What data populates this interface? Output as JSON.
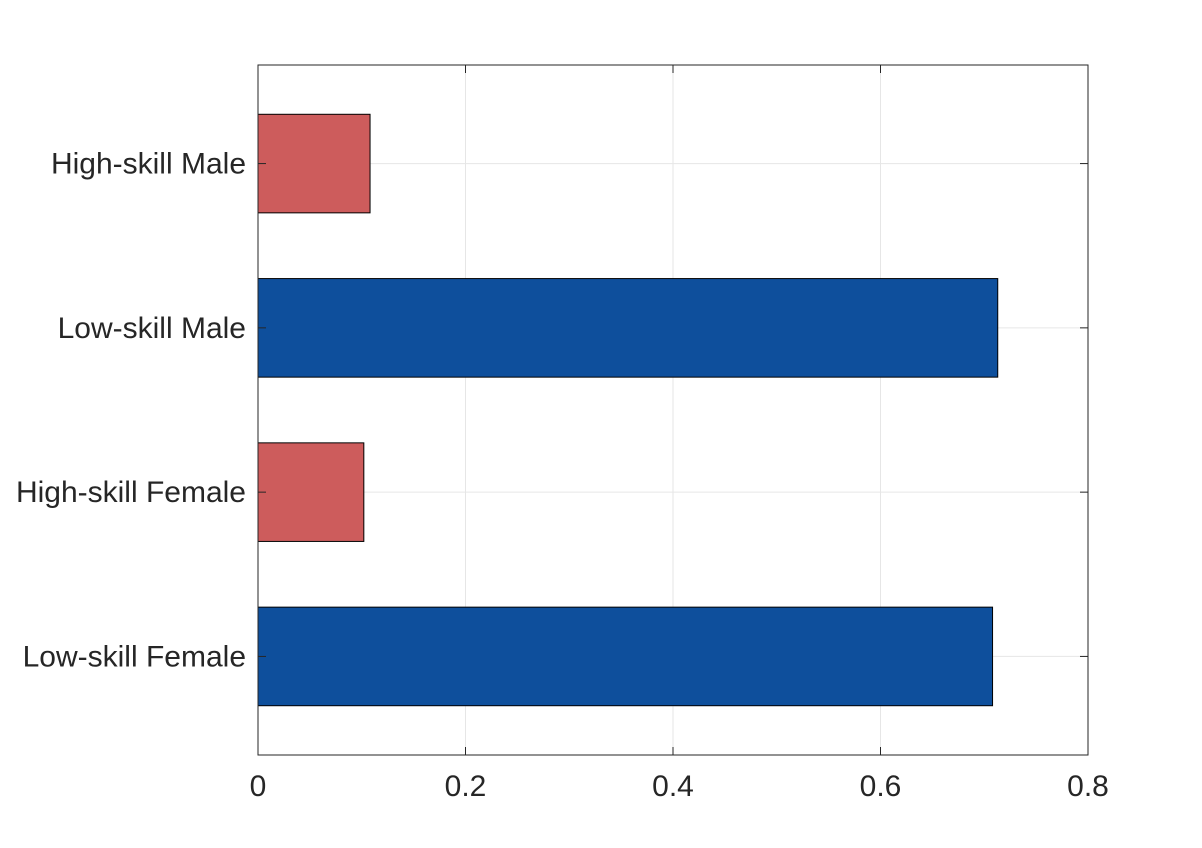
{
  "chart_data": {
    "type": "bar",
    "orientation": "horizontal",
    "categories": [
      "Low-skill Female",
      "High-skill Female",
      "Low-skill Male",
      "High-skill Male"
    ],
    "values": [
      0.708,
      0.102,
      0.713,
      0.108
    ],
    "bar_colors": [
      "#0e4f9c",
      "#cd5c5c",
      "#0e4f9c",
      "#cd5c5c"
    ],
    "xlim": [
      0,
      0.8
    ],
    "xticks": [
      0,
      0.2,
      0.4,
      0.6,
      0.8
    ],
    "xtick_labels": [
      "0",
      "0.2",
      "0.4",
      "0.6",
      "0.8"
    ],
    "ylim": [
      0.4,
      4.6
    ],
    "grid": true,
    "title": "",
    "xlabel": "",
    "ylabel": ""
  }
}
